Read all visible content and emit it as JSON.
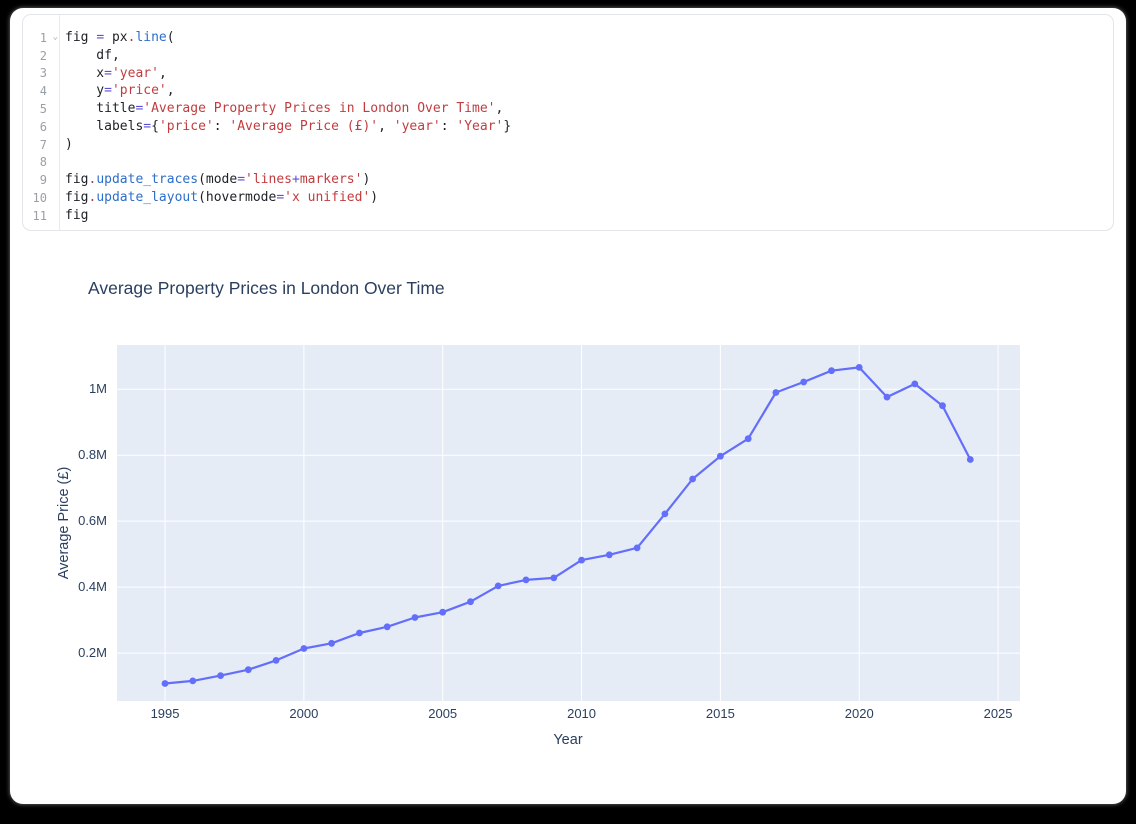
{
  "page": {
    "frame_color": "#000000",
    "card_color": "#ffffff"
  },
  "editor": {
    "fold_icon": "⌄",
    "lines": [
      {
        "number": "1",
        "tokens": [
          [
            "p",
            "fig "
          ],
          [
            "o",
            "="
          ],
          [
            "p",
            " px"
          ],
          [
            "d",
            "."
          ],
          [
            "f",
            "line"
          ],
          [
            "p",
            "("
          ]
        ]
      },
      {
        "number": "2",
        "tokens": [
          [
            "p",
            "    df,"
          ]
        ]
      },
      {
        "number": "3",
        "tokens": [
          [
            "p",
            "    x"
          ],
          [
            "o",
            "="
          ],
          [
            "s",
            "'year'"
          ],
          [
            "p",
            ","
          ]
        ]
      },
      {
        "number": "4",
        "tokens": [
          [
            "p",
            "    y"
          ],
          [
            "o",
            "="
          ],
          [
            "s",
            "'price'"
          ],
          [
            "p",
            ","
          ]
        ]
      },
      {
        "number": "5",
        "tokens": [
          [
            "p",
            "    title"
          ],
          [
            "o",
            "="
          ],
          [
            "s",
            "'Average Property Prices in London Over Time'"
          ],
          [
            "p",
            ","
          ]
        ]
      },
      {
        "number": "6",
        "tokens": [
          [
            "p",
            "    labels"
          ],
          [
            "o",
            "="
          ],
          [
            "p",
            "{"
          ],
          [
            "s",
            "'price'"
          ],
          [
            "p",
            ": "
          ],
          [
            "s",
            "'Average Price (£)'"
          ],
          [
            "p",
            ", "
          ],
          [
            "s",
            "'year'"
          ],
          [
            "p",
            ": "
          ],
          [
            "s",
            "'Year'"
          ],
          [
            "p",
            "}"
          ]
        ]
      },
      {
        "number": "7",
        "tokens": [
          [
            "p",
            ")"
          ]
        ]
      },
      {
        "number": "8",
        "tokens": []
      },
      {
        "number": "9",
        "tokens": [
          [
            "p",
            "fig"
          ],
          [
            "d",
            "."
          ],
          [
            "f",
            "update_traces"
          ],
          [
            "p",
            "(mode"
          ],
          [
            "o",
            "="
          ],
          [
            "s",
            "'lines"
          ],
          [
            "o",
            "+"
          ],
          [
            "s",
            "markers'"
          ],
          [
            "p",
            ")"
          ]
        ]
      },
      {
        "number": "10",
        "tokens": [
          [
            "p",
            "fig"
          ],
          [
            "d",
            "."
          ],
          [
            "f",
            "update_layout"
          ],
          [
            "p",
            "(hovermode"
          ],
          [
            "o",
            "="
          ],
          [
            "s",
            "'x unified'"
          ],
          [
            "p",
            ")"
          ]
        ]
      },
      {
        "number": "11",
        "tokens": [
          [
            "p",
            "fig"
          ]
        ]
      }
    ]
  },
  "chart_data": {
    "type": "line",
    "title": "Average Property Prices in London Over Time",
    "xlabel": "Year",
    "ylabel": "Average Price (£)",
    "series": [
      {
        "name": "price",
        "mode": "lines+markers",
        "color": "#636efa",
        "x": [
          1995,
          1996,
          1997,
          1998,
          1999,
          2000,
          2001,
          2002,
          2003,
          2004,
          2005,
          2006,
          2007,
          2008,
          2009,
          2010,
          2011,
          2012,
          2013,
          2014,
          2015,
          2016,
          2017,
          2018,
          2019,
          2020,
          2021,
          2022,
          2023,
          2024
        ],
        "y_millions": [
          0.108,
          0.116,
          0.132,
          0.15,
          0.178,
          0.214,
          0.23,
          0.261,
          0.28,
          0.308,
          0.324,
          0.356,
          0.404,
          0.422,
          0.428,
          0.482,
          0.498,
          0.519,
          0.622,
          0.728,
          0.797,
          0.85,
          0.99,
          1.022,
          1.056,
          1.066,
          0.976,
          1.016,
          0.95,
          0.787
        ]
      }
    ],
    "xlim": [
      1993.27,
      2025.79
    ],
    "ylim_millions": [
      0.055,
      1.134
    ],
    "xticks": [
      {
        "v": 1995,
        "label": "1995"
      },
      {
        "v": 2000,
        "label": "2000"
      },
      {
        "v": 2005,
        "label": "2005"
      },
      {
        "v": 2010,
        "label": "2010"
      },
      {
        "v": 2015,
        "label": "2015"
      },
      {
        "v": 2020,
        "label": "2020"
      },
      {
        "v": 2025,
        "label": "2025"
      }
    ],
    "yticks": [
      {
        "v": 0.2,
        "label": "0.2M"
      },
      {
        "v": 0.4,
        "label": "0.4M"
      },
      {
        "v": 0.6,
        "label": "0.6M"
      },
      {
        "v": 0.8,
        "label": "0.8M"
      },
      {
        "v": 1.0,
        "label": "1M"
      }
    ],
    "grid": true,
    "legend": "none",
    "plot_bg": "#e5ecf6",
    "grid_color": "#ffffff",
    "text_color": "#2a3f5f"
  }
}
